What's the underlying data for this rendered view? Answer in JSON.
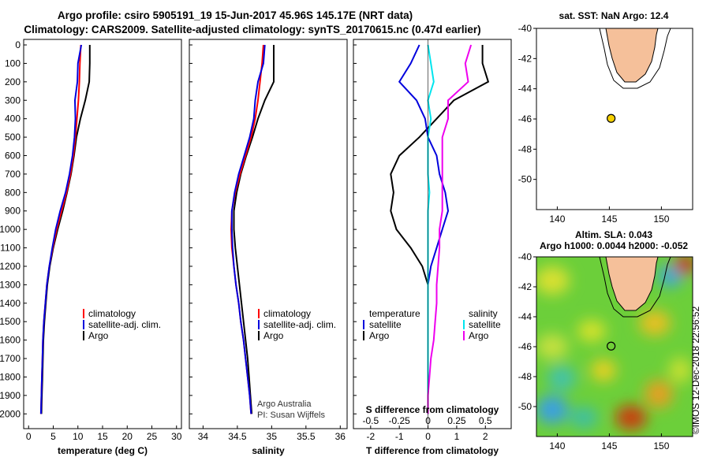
{
  "header": {
    "title_line1": "Argo profile: csiro 5905191_19 15-Jun-2017 45.96S 145.17E (NRT data)",
    "title_line2": "Climatology: CARS2009. Satellite-adjusted climatology: synTS_20170615.nc (0.47d earlier)"
  },
  "colors": {
    "argo": "#000000",
    "climatology": "#ff0000",
    "satellite": "#0000dd",
    "sat_salinity": "#00e5ee",
    "argo_salinity_diff": "#ee00ee",
    "land": "#f5c09a",
    "float_marker": "#f5d000"
  },
  "depth_ticks": [
    "0",
    "100",
    "200",
    "300",
    "400",
    "500",
    "600",
    "700",
    "800",
    "900",
    "1000",
    "1100",
    "1200",
    "1300",
    "1400",
    "1500",
    "1600",
    "1700",
    "1800",
    "1900",
    "2000"
  ],
  "legend": {
    "climatology": "climatology",
    "satellite": "satellite-adj. clim.",
    "argo": "Argo"
  },
  "credit": {
    "line1": "Argo Australia",
    "line2": "PI: Susan Wijffels"
  },
  "diff_legend": {
    "temp_header": "temperature",
    "sal_header": "salinity",
    "satellite": "satellite",
    "argo": "Argo"
  },
  "chart_data": [
    {
      "type": "line",
      "xlabel": "temperature (deg C)",
      "ylabel": "",
      "xlim": [
        -1,
        31
      ],
      "ylim": [
        2080,
        -30
      ],
      "xticks": [
        "0",
        "5",
        "10",
        "15",
        "20",
        "25",
        "30"
      ],
      "series": [
        {
          "name": "Argo",
          "x": [
            12.4,
            12.4,
            12.3,
            11.5,
            10.5,
            9.7,
            9.2,
            8.6,
            7.8,
            6.9,
            5.9,
            5.0,
            4.3,
            3.8,
            3.5,
            3.2,
            3.0,
            2.9,
            2.8,
            2.7,
            2.6
          ],
          "y": [
            0,
            100,
            200,
            300,
            400,
            500,
            600,
            700,
            800,
            900,
            1000,
            1100,
            1200,
            1300,
            1400,
            1500,
            1600,
            1700,
            1800,
            1900,
            2000
          ]
        },
        {
          "name": "climatology",
          "x": [
            10.6,
            10.4,
            10.3,
            10.1,
            9.8,
            9.5,
            9.1,
            8.5,
            7.7,
            6.7,
            5.7,
            4.9,
            4.2,
            3.7,
            3.4,
            3.1,
            2.9,
            2.8,
            2.7,
            2.6,
            2.5
          ],
          "y": [
            0,
            100,
            200,
            300,
            400,
            500,
            600,
            700,
            800,
            900,
            1000,
            1100,
            1200,
            1300,
            1400,
            1500,
            1600,
            1700,
            1800,
            1900,
            2000
          ]
        },
        {
          "name": "satellite-adj. clim.",
          "x": [
            10.7,
            10.0,
            9.9,
            9.4,
            9.5,
            9.3,
            8.9,
            8.3,
            7.5,
            6.4,
            5.5,
            4.8,
            4.2,
            3.7,
            3.4,
            3.1,
            2.9,
            2.8,
            2.7,
            2.6,
            2.5
          ],
          "y": [
            0,
            100,
            200,
            300,
            400,
            500,
            600,
            700,
            800,
            900,
            1000,
            1100,
            1200,
            1300,
            1400,
            1500,
            1600,
            1700,
            1800,
            1900,
            2000
          ]
        }
      ]
    },
    {
      "type": "line",
      "xlabel": "salinity",
      "ylabel": "",
      "xlim": [
        33.8,
        36.1
      ],
      "ylim": [
        2080,
        -30
      ],
      "xticks": [
        "34",
        "34.5",
        "35",
        "35.5",
        "36"
      ],
      "series": [
        {
          "name": "Argo",
          "x": [
            35.03,
            35.03,
            35.03,
            34.9,
            34.8,
            34.72,
            34.63,
            34.55,
            34.49,
            34.45,
            34.45,
            34.47,
            34.5,
            34.53,
            34.56,
            34.59,
            34.62,
            34.65,
            34.67,
            34.69,
            34.71
          ],
          "y": [
            0,
            100,
            200,
            300,
            400,
            500,
            600,
            700,
            800,
            900,
            1000,
            1100,
            1200,
            1300,
            1400,
            1500,
            1600,
            1700,
            1800,
            1900,
            2000
          ]
        },
        {
          "name": "climatology",
          "x": [
            34.88,
            34.86,
            34.83,
            34.8,
            34.76,
            34.7,
            34.62,
            34.54,
            34.47,
            34.42,
            34.41,
            34.42,
            34.45,
            34.48,
            34.52,
            34.55,
            34.59,
            34.62,
            34.65,
            34.68,
            34.7
          ],
          "y": [
            0,
            100,
            200,
            300,
            400,
            500,
            600,
            700,
            800,
            900,
            1000,
            1100,
            1200,
            1300,
            1400,
            1500,
            1600,
            1700,
            1800,
            1900,
            2000
          ]
        },
        {
          "name": "satellite-adj. clim.",
          "x": [
            34.9,
            34.88,
            34.8,
            34.76,
            34.74,
            34.68,
            34.6,
            34.52,
            34.46,
            34.42,
            34.42,
            34.43,
            34.45,
            34.48,
            34.52,
            34.55,
            34.59,
            34.62,
            34.65,
            34.68,
            34.7
          ],
          "y": [
            0,
            100,
            200,
            300,
            400,
            500,
            600,
            700,
            800,
            900,
            1000,
            1100,
            1200,
            1300,
            1400,
            1500,
            1600,
            1700,
            1800,
            1900,
            2000
          ]
        }
      ]
    },
    {
      "type": "line",
      "xlabel": "T difference from climatology",
      "x2label": "S difference from climatology",
      "xlim": [
        -2.6,
        2.9
      ],
      "ylim": [
        2080,
        -30
      ],
      "xticks": [
        "-2",
        "-1",
        "0",
        "1",
        "2"
      ],
      "x2ticks": [
        "-0.5",
        "-0.25",
        "0",
        "0.25",
        "0.5"
      ],
      "series": [
        {
          "name": "temperature Argo",
          "x": [
            1.9,
            1.9,
            2.1,
            0.9,
            0.3,
            -0.3,
            -1.0,
            -1.3,
            -1.2,
            -1.3,
            -1.1,
            -0.6,
            -0.2,
            0.0,
            0.0,
            0.0,
            0.0,
            0.0,
            0.0,
            0.0,
            0.0
          ],
          "y": [
            0,
            100,
            200,
            300,
            400,
            500,
            600,
            700,
            800,
            900,
            1000,
            1100,
            1200,
            1300,
            1400,
            1500,
            1600,
            1700,
            1800,
            1900,
            2000
          ]
        },
        {
          "name": "temperature satellite",
          "x": [
            -0.3,
            -0.6,
            -1.0,
            -0.4,
            -0.1,
            0.0,
            0.3,
            0.4,
            0.6,
            0.7,
            0.5,
            0.3,
            0.1,
            0.0,
            0.0,
            0.0,
            0.0,
            0.0,
            0.0,
            0.0,
            0.0
          ],
          "y": [
            0,
            100,
            200,
            300,
            400,
            500,
            600,
            700,
            800,
            900,
            1000,
            1100,
            1200,
            1300,
            1400,
            1500,
            1600,
            1700,
            1800,
            1900,
            2000
          ]
        },
        {
          "name": "salinity satellite",
          "x": [
            0.0,
            0.1,
            0.2,
            0.0,
            0.1,
            0.0,
            0.0,
            0.0,
            0.05,
            0.0,
            0.0,
            0.0,
            0.0,
            0.0,
            0.0,
            0.0,
            0.0,
            0.0,
            0.0,
            0.0,
            0.0
          ],
          "y": [
            0,
            100,
            200,
            300,
            400,
            500,
            600,
            700,
            800,
            900,
            1000,
            1100,
            1200,
            1300,
            1400,
            1500,
            1600,
            1700,
            1800,
            1900,
            2000
          ]
        },
        {
          "name": "salinity Argo",
          "x": [
            1.5,
            1.3,
            1.4,
            0.7,
            0.7,
            0.5,
            0.5,
            0.5,
            0.5,
            0.5,
            0.4,
            0.4,
            0.35,
            0.3,
            0.3,
            0.25,
            0.2,
            0.1,
            0.05,
            0.0,
            0.0
          ],
          "y": [
            0,
            100,
            200,
            300,
            400,
            500,
            600,
            700,
            800,
            900,
            1000,
            1100,
            1200,
            1300,
            1400,
            1500,
            1600,
            1700,
            1800,
            1900,
            2000
          ]
        }
      ]
    },
    {
      "type": "scatter",
      "title": "sat. SST: NaN Argo: 12.4",
      "xlim": [
        138,
        153
      ],
      "ylim": [
        -52,
        -40
      ],
      "xticks": [
        "140",
        "145",
        "150"
      ],
      "yticks": [
        "-40",
        "-42",
        "-44",
        "-46",
        "-48",
        "-50"
      ],
      "x": [
        145.17
      ],
      "y": [
        -45.96
      ]
    },
    {
      "type": "heatmap",
      "title_line1": "Altim. SLA: 0.043",
      "title_line2": "Argo h1000: 0.0044 h2000: -0.052",
      "xlim": [
        138,
        153
      ],
      "ylim": [
        -52,
        -40
      ],
      "xticks": [
        "140",
        "145",
        "150"
      ],
      "yticks": [
        "-40",
        "-42",
        "-44",
        "-46",
        "-48",
        "-50"
      ],
      "x": [
        145.17
      ],
      "y": [
        -45.96
      ]
    }
  ],
  "watermark": "©IMOS 12-Dec-2018 22:56:52"
}
